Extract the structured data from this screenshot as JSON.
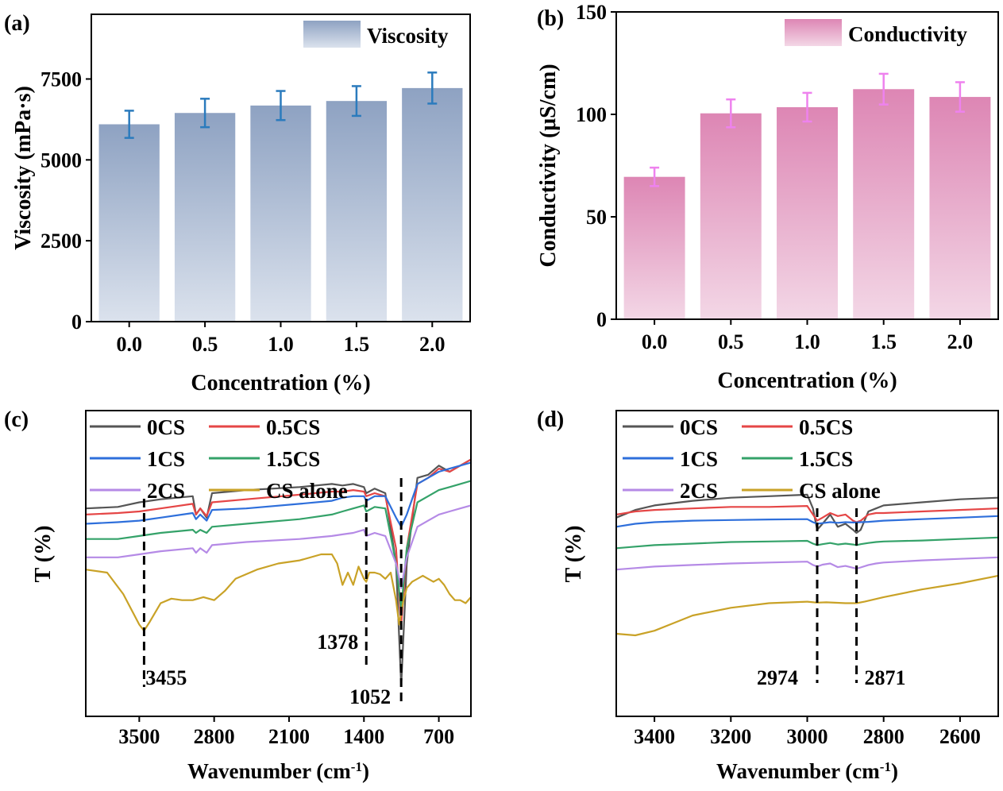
{
  "colors": {
    "viscosity_bar_top": "#8ea2c2",
    "viscosity_bar_bottom": "#dbe2ed",
    "viscosity_err": "#2b7bbd",
    "conductivity_bar_top": "#dd86b4",
    "conductivity_bar_bottom": "#f3d7e6",
    "conductivity_err": "#ee82ee",
    "series": {
      "0CS": "#555555",
      "0.5CS": "#e54646",
      "1CS": "#2e6fdb",
      "1.5CS": "#34a269",
      "2CS": "#b58ae6",
      "CS alone": "#c9a227"
    }
  },
  "chart_data": [
    {
      "id": "a",
      "panel_label": "(a)",
      "type": "bar",
      "categories": [
        "0.0",
        "0.5",
        "1.0",
        "1.5",
        "2.0"
      ],
      "values": [
        6100,
        6450,
        6680,
        6820,
        7220
      ],
      "errors": [
        420,
        440,
        450,
        460,
        480
      ],
      "xlabel": "Concentration (%)",
      "ylabel": "Viscosity (mPa·s)",
      "ylim": [
        0,
        9500
      ],
      "yticks": [
        0,
        2500,
        5000,
        7500
      ],
      "legend": [
        "Viscosity"
      ],
      "legend_position": "top-right"
    },
    {
      "id": "b",
      "panel_label": "(b)",
      "type": "bar",
      "categories": [
        "0.0",
        "0.5",
        "1.0",
        "1.5",
        "2.0"
      ],
      "values": [
        69.5,
        100.5,
        103.5,
        112.3,
        108.5
      ],
      "errors": [
        4.5,
        6.8,
        7.0,
        7.5,
        7.2
      ],
      "xlabel": "Concentration (%)",
      "ylabel": "Conductivity (μS/cm)",
      "ylim": [
        0,
        150
      ],
      "yticks": [
        0,
        50,
        100,
        150
      ],
      "legend": [
        "Conductivity"
      ],
      "legend_position": "top-right"
    },
    {
      "id": "c",
      "panel_label": "(c)",
      "type": "line",
      "xlabel": "Wavenumber (cm-1)",
      "ylabel": "T (%)",
      "xlim": [
        4000,
        400
      ],
      "xticks": [
        3500,
        2800,
        2100,
        1400,
        700
      ],
      "legend_position": "top-left",
      "series": [
        {
          "name": "0CS",
          "x": [
            4000,
            3700,
            3500,
            3300,
            3000,
            2970,
            2930,
            2870,
            2820,
            2500,
            2000,
            1700,
            1600,
            1500,
            1400,
            1378,
            1300,
            1200,
            1100,
            1052,
            1000,
            900,
            800,
            700,
            600,
            500,
            400
          ],
          "y": [
            68,
            68.5,
            70,
            71,
            72,
            66,
            68,
            65,
            73,
            74,
            75,
            76,
            75.5,
            76,
            75,
            73,
            74.5,
            73,
            50,
            10,
            50,
            78,
            79,
            82,
            80,
            82,
            84
          ]
        },
        {
          "name": "0.5CS",
          "x": [
            4000,
            3700,
            3500,
            3300,
            3000,
            2970,
            2930,
            2870,
            2820,
            2500,
            2000,
            1700,
            1600,
            1500,
            1400,
            1378,
            1300,
            1200,
            1100,
            1052,
            1000,
            900,
            800,
            700,
            600,
            500,
            400
          ],
          "y": [
            66,
            66.5,
            67,
            68,
            69.5,
            66,
            68,
            65.5,
            70,
            71,
            72.5,
            73.5,
            73.5,
            74,
            73.5,
            72,
            73,
            72,
            55,
            30,
            55,
            76,
            78,
            81,
            80,
            82,
            84
          ]
        },
        {
          "name": "1CS",
          "x": [
            4000,
            3700,
            3500,
            3300,
            3000,
            2970,
            2930,
            2870,
            2820,
            2500,
            2000,
            1700,
            1600,
            1500,
            1400,
            1378,
            1300,
            1200,
            1100,
            1052,
            1000,
            900,
            800,
            700,
            600,
            500,
            400
          ],
          "y": [
            63,
            63.5,
            64,
            65,
            66.5,
            64.5,
            66,
            64,
            67.5,
            68,
            69.5,
            70.5,
            71.5,
            72,
            72,
            70.5,
            72,
            72,
            65,
            62,
            66,
            76,
            78,
            80,
            81,
            82,
            83
          ]
        },
        {
          "name": "1.5CS",
          "x": [
            4000,
            3700,
            3500,
            3300,
            3000,
            2970,
            2930,
            2870,
            2820,
            2500,
            2000,
            1700,
            1600,
            1500,
            1400,
            1378,
            1300,
            1200,
            1100,
            1052,
            1000,
            900,
            800,
            700,
            600,
            500,
            400
          ],
          "y": [
            58,
            58,
            59,
            60,
            61,
            60,
            61,
            60,
            62,
            63,
            64.5,
            66,
            67,
            68,
            69,
            67,
            68.5,
            68,
            50,
            35,
            55,
            70,
            72,
            74,
            75,
            76,
            77
          ]
        },
        {
          "name": "2CS",
          "x": [
            4000,
            3700,
            3500,
            3300,
            3000,
            2970,
            2930,
            2870,
            2820,
            2500,
            2000,
            1700,
            1600,
            1500,
            1400,
            1378,
            1300,
            1200,
            1100,
            1052,
            1000,
            900,
            800,
            700,
            600,
            500,
            400
          ],
          "y": [
            52,
            52,
            53,
            54,
            55,
            53.5,
            55,
            53.5,
            56,
            57,
            58,
            59,
            59.5,
            60,
            61,
            59,
            60,
            59,
            50,
            42,
            52,
            62,
            64,
            66,
            67,
            68,
            69
          ]
        },
        {
          "name": "CS alone",
          "x": [
            4000,
            3800,
            3650,
            3500,
            3455,
            3400,
            3300,
            3200,
            3100,
            3000,
            2900,
            2800,
            2700,
            2600,
            2400,
            2200,
            2000,
            1800,
            1700,
            1650,
            1600,
            1550,
            1500,
            1450,
            1400,
            1378,
            1350,
            1300,
            1250,
            1200,
            1150,
            1100,
            1070,
            1052,
            1030,
            1000,
            950,
            900,
            850,
            800,
            750,
            700,
            650,
            600,
            550,
            500,
            450,
            400
          ],
          "y": [
            48,
            47,
            40,
            30,
            28,
            31,
            37,
            38.5,
            38,
            38,
            39,
            38,
            41,
            45,
            48,
            50,
            51,
            53,
            53,
            50,
            43,
            47,
            43,
            49,
            45,
            44,
            47,
            47,
            46.5,
            45,
            47,
            38,
            30,
            34,
            38,
            42,
            44,
            45,
            46,
            45,
            44,
            45,
            43,
            40,
            38,
            38,
            37,
            39
          ]
        }
      ],
      "annotations": [
        {
          "text": "3455",
          "x": 3455
        },
        {
          "text": "1378",
          "x": 1378
        },
        {
          "text": "1052",
          "x": 1052
        }
      ]
    },
    {
      "id": "d",
      "panel_label": "(d)",
      "type": "line",
      "xlabel": "Wavenumber (cm-1)",
      "ylabel": "T (%)",
      "xlim": [
        3500,
        2500
      ],
      "xticks": [
        3400,
        3200,
        3000,
        2800,
        2600
      ],
      "legend_position": "top-left",
      "series": [
        {
          "name": "0CS",
          "x": [
            3500,
            3450,
            3400,
            3300,
            3200,
            3100,
            3000,
            2985,
            2974,
            2960,
            2940,
            2920,
            2900,
            2880,
            2871,
            2860,
            2840,
            2820,
            2800,
            2700,
            2600,
            2500
          ],
          "y": [
            65,
            67.5,
            69,
            70.5,
            71.5,
            72,
            72.5,
            68,
            61,
            63,
            66,
            62,
            63,
            61,
            60,
            61,
            67,
            68,
            69,
            70,
            71,
            71.5
          ]
        },
        {
          "name": "0.5CS",
          "x": [
            3500,
            3450,
            3400,
            3300,
            3200,
            3100,
            3000,
            2985,
            2974,
            2960,
            2940,
            2920,
            2900,
            2880,
            2871,
            2860,
            2840,
            2820,
            2800,
            2700,
            2600,
            2500
          ],
          "y": [
            66,
            67,
            67.5,
            68,
            68.5,
            68.5,
            68.8,
            66,
            64,
            65,
            66.5,
            65.5,
            66,
            64,
            63.5,
            64,
            66,
            66.5,
            66.5,
            67,
            67.5,
            68
          ]
        },
        {
          "name": "1CS",
          "x": [
            3500,
            3450,
            3400,
            3300,
            3200,
            3100,
            3000,
            2985,
            2974,
            2960,
            2940,
            2920,
            2900,
            2880,
            2871,
            2860,
            2840,
            2820,
            2800,
            2700,
            2600,
            2500
          ],
          "y": [
            62,
            63,
            63.5,
            64,
            64.2,
            64.4,
            64.5,
            63.5,
            63,
            63.2,
            63.5,
            63.3,
            63.5,
            63.4,
            63.4,
            63.5,
            63.6,
            63.8,
            64,
            64.5,
            65,
            65.5
          ]
        },
        {
          "name": "1.5CS",
          "x": [
            3500,
            3450,
            3400,
            3300,
            3200,
            3100,
            3000,
            2985,
            2974,
            2960,
            2940,
            2920,
            2900,
            2880,
            2871,
            2860,
            2840,
            2820,
            2800,
            2700,
            2600,
            2500
          ],
          "y": [
            55,
            55.5,
            56,
            56.5,
            57,
            57.2,
            57.4,
            56.5,
            56,
            56.3,
            56.7,
            56.2,
            56.5,
            56.2,
            56,
            56.3,
            56.7,
            57,
            57.2,
            57.5,
            58,
            58.5
          ]
        },
        {
          "name": "2CS",
          "x": [
            3500,
            3450,
            3400,
            3300,
            3200,
            3100,
            3000,
            2985,
            2974,
            2960,
            2940,
            2920,
            2900,
            2880,
            2871,
            2860,
            2840,
            2820,
            2800,
            2700,
            2600,
            2500
          ],
          "y": [
            48,
            48.5,
            49,
            49.5,
            50,
            50.3,
            50.6,
            49.5,
            49,
            49.6,
            50,
            48.8,
            49.2,
            48.6,
            48.3,
            48.7,
            49.5,
            50,
            50.3,
            51,
            51.5,
            52
          ]
        },
        {
          "name": "CS alone",
          "x": [
            3500,
            3450,
            3400,
            3350,
            3300,
            3200,
            3100,
            3000,
            2974,
            2950,
            2900,
            2871,
            2850,
            2800,
            2700,
            2600,
            2500
          ],
          "y": [
            27,
            26.5,
            28,
            30.5,
            33,
            35.5,
            37,
            37.5,
            37.2,
            37.3,
            37,
            37,
            37.5,
            39,
            41.5,
            43.5,
            46
          ]
        }
      ],
      "annotations": [
        {
          "text": "2974",
          "x": 2974
        },
        {
          "text": "2871",
          "x": 2871
        }
      ]
    }
  ]
}
